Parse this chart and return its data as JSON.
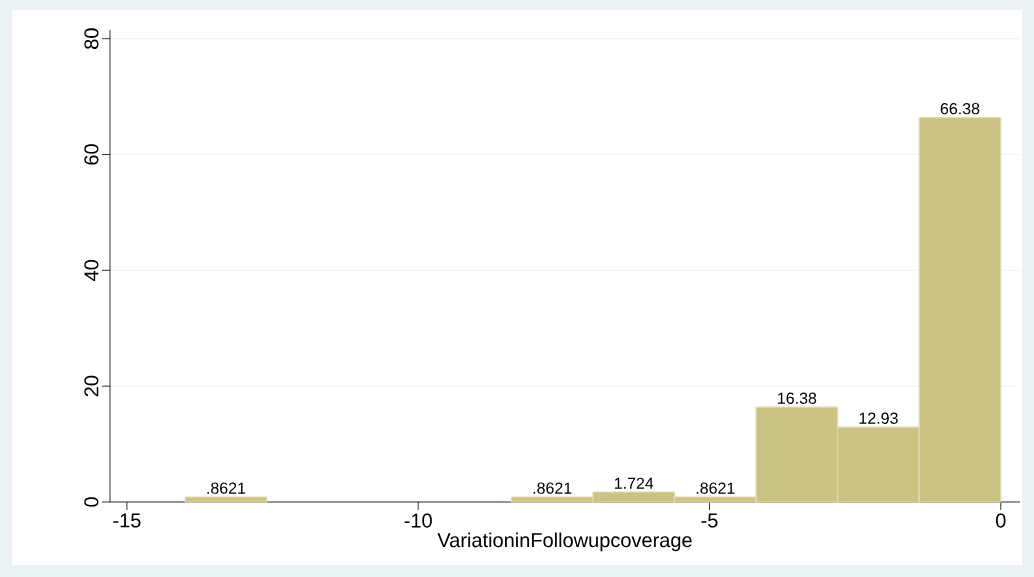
{
  "chart_data": {
    "type": "histogram",
    "xlabel": "VariationinFollowupcoverage",
    "bins": [
      -14,
      -12.6,
      -11.2,
      -9.8,
      -8.4,
      -7,
      -5.6,
      -4.2,
      -2.8,
      -1.4,
      0
    ],
    "values": [
      0.8621,
      0,
      0,
      0,
      0.8621,
      1.724,
      0.8621,
      16.38,
      12.93,
      66.38
    ],
    "value_labels": [
      ".8621",
      null,
      null,
      null,
      ".8621",
      "1.724",
      ".8621",
      "16.38",
      "12.93",
      "66.38"
    ],
    "color": "#cbc382",
    "xlim": [
      -15.29,
      0.33
    ],
    "ylim": [
      0,
      81.5
    ],
    "xticks": [
      -15,
      -10,
      -5,
      0
    ],
    "yticks": [
      0,
      20,
      40,
      60,
      80
    ],
    "grid": "y"
  }
}
